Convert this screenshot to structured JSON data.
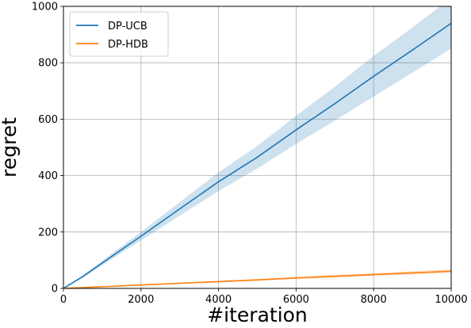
{
  "chart_data": {
    "type": "line",
    "xlabel": "#iteration",
    "ylabel": "regret",
    "xlim": [
      0,
      10000
    ],
    "ylim": [
      0,
      1000
    ],
    "xticks": [
      0,
      2000,
      4000,
      6000,
      8000,
      10000
    ],
    "yticks": [
      0,
      200,
      400,
      600,
      800,
      1000
    ],
    "grid": true,
    "legend_position": "top-left",
    "series": [
      {
        "name": "DP-UCB",
        "color": "#1f77b4",
        "band_color": "#1f77b4",
        "x": [
          0,
          500,
          1000,
          2000,
          3000,
          4000,
          5000,
          6000,
          7000,
          8000,
          9000,
          10000
        ],
        "y": [
          0,
          42,
          90,
          185,
          282,
          378,
          465,
          562,
          655,
          752,
          845,
          940
        ],
        "lower": [
          0,
          38,
          82,
          170,
          258,
          345,
          425,
          512,
          595,
          680,
          765,
          850
        ],
        "upper": [
          0,
          46,
          98,
          200,
          306,
          411,
          505,
          612,
          715,
          824,
          925,
          1030
        ]
      },
      {
        "name": "DP-HDB",
        "color": "#ff7f0e",
        "band_color": "#ff7f0e",
        "x": [
          0,
          1000,
          2000,
          3000,
          4000,
          5000,
          6000,
          7000,
          8000,
          9000,
          10000
        ],
        "y": [
          0,
          6,
          12,
          18,
          24,
          30,
          37,
          43,
          49,
          55,
          61
        ],
        "lower": [
          0,
          5,
          10,
          16,
          21,
          27,
          33,
          38,
          44,
          49,
          55
        ],
        "upper": [
          0,
          7,
          14,
          20,
          27,
          33,
          41,
          48,
          54,
          61,
          67
        ]
      }
    ]
  }
}
